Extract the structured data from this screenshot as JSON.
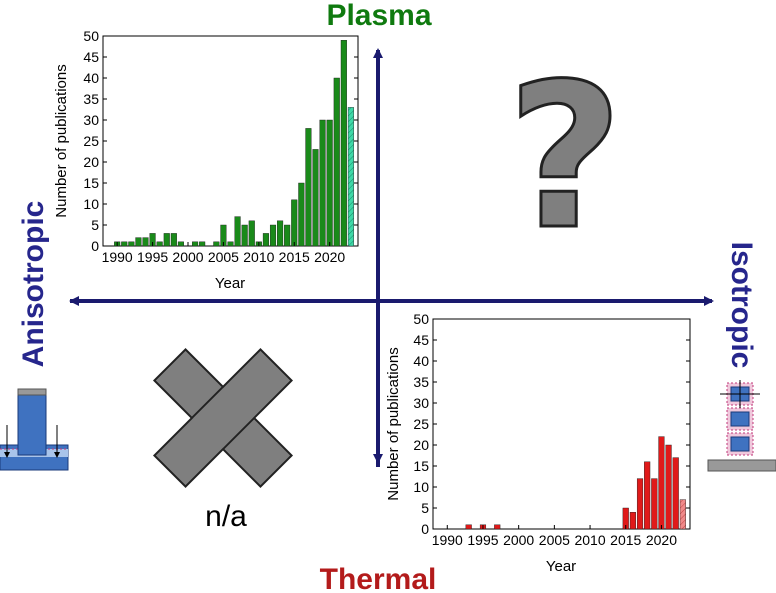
{
  "quadrant_labels": {
    "top": "Plasma",
    "bottom": "Thermal",
    "left": "Anisotropic",
    "right": "Isotropic",
    "not_applicable": "n/a",
    "unknown_symbol": "?"
  },
  "colors": {
    "axis": "#1a1a6e",
    "plasma": "#0f7a0f",
    "thermal": "#b31b1b",
    "anisotropic": "#26268c",
    "isotropic": "#26268c",
    "symbol": "#7f7f7f",
    "plasma_bar": "#1a8a1a",
    "plasma_partial": "#3fd9a8",
    "thermal_bar": "#e01a1a",
    "thermal_partial": "#f08a8a",
    "schematic_blue": "#3f72c0",
    "schematic_gray": "#999999"
  },
  "chart_data": [
    {
      "type": "bar",
      "name": "plasma-chart",
      "xlabel": "Year",
      "ylabel": "Number of publications",
      "xlim": [
        1988,
        2024
      ],
      "ylim": [
        0,
        50
      ],
      "x_ticks": [
        1990,
        1995,
        2000,
        2005,
        2010,
        2015,
        2020
      ],
      "y_ticks": [
        0,
        5,
        10,
        15,
        20,
        25,
        30,
        35,
        40,
        45,
        50
      ],
      "x": [
        1990,
        1991,
        1992,
        1993,
        1994,
        1995,
        1996,
        1997,
        1998,
        1999,
        2000,
        2001,
        2002,
        2003,
        2004,
        2005,
        2006,
        2007,
        2008,
        2009,
        2010,
        2011,
        2012,
        2013,
        2014,
        2015,
        2016,
        2017,
        2018,
        2019,
        2020,
        2021,
        2022,
        2023
      ],
      "values": [
        1,
        1,
        1,
        2,
        2,
        3,
        1,
        3,
        3,
        1,
        0,
        1,
        1,
        0,
        1,
        5,
        1,
        7,
        5,
        6,
        1,
        3,
        5,
        6,
        5,
        11,
        15,
        28,
        23,
        30,
        30,
        40,
        49,
        33
      ],
      "partial_year": 2023
    },
    {
      "type": "bar",
      "name": "thermal-chart",
      "xlabel": "Year",
      "ylabel": "Number of publications",
      "xlim": [
        1988,
        2024
      ],
      "ylim": [
        0,
        50
      ],
      "x_ticks": [
        1990,
        1995,
        2000,
        2005,
        2010,
        2015,
        2020
      ],
      "y_ticks": [
        0,
        5,
        10,
        15,
        20,
        25,
        30,
        35,
        40,
        45,
        50
      ],
      "x": [
        1993,
        1995,
        1997,
        2015,
        2016,
        2017,
        2018,
        2019,
        2020,
        2021,
        2022,
        2023
      ],
      "values": [
        1,
        1,
        1,
        5,
        4,
        12,
        16,
        12,
        22,
        20,
        17,
        7
      ],
      "partial_year": 2023
    }
  ]
}
